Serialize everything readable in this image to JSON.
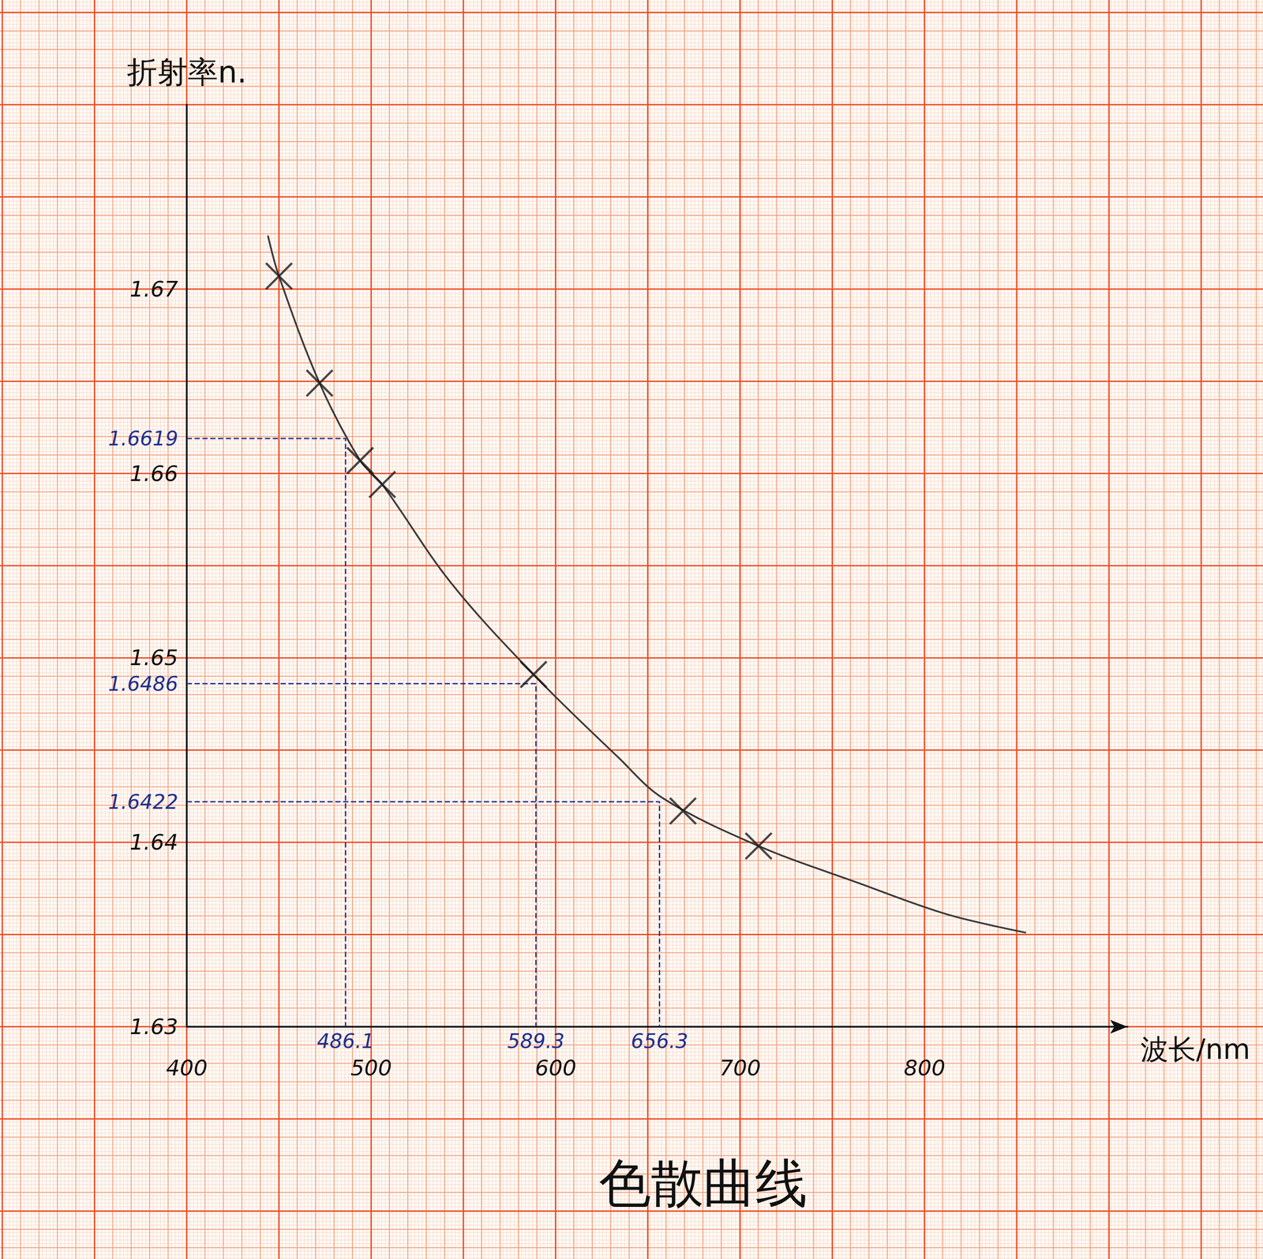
{
  "chart_data": {
    "type": "line",
    "title": "色散曲线",
    "x_label": "波长/nm",
    "y_label": "折射率n.",
    "xlim": [
      400,
      910
    ],
    "ylim": [
      1.63,
      1.68
    ],
    "xticks": [
      400,
      500,
      600,
      700,
      800
    ],
    "yticks": [
      1.63,
      1.64,
      1.65,
      1.66,
      1.67
    ],
    "grid": true,
    "series": [
      {
        "type": "line",
        "color": "#3a3a3a",
        "marker": "none",
        "line_style": "solid",
        "x": [
          444,
          450,
          472,
          494,
          506,
          543,
          588,
          634,
          658,
          710,
          764,
          812,
          855
        ],
        "values": [
          1.6729,
          1.6707,
          1.6649,
          1.6607,
          1.6594,
          1.6541,
          1.6491,
          1.6446,
          1.6424,
          1.6398,
          1.6378,
          1.6361,
          1.6351
        ]
      },
      {
        "type": "scatter",
        "color": "#1a1a1a",
        "marker": "cross",
        "x": [
          450,
          472,
          494,
          506,
          588,
          669,
          710
        ],
        "values": [
          1.6707,
          1.6649,
          1.6607,
          1.6594,
          1.6491,
          1.6417,
          1.6398
        ]
      }
    ],
    "annotations": [
      {
        "x": 486.1,
        "y": 1.6619,
        "color": "#1f2f8f",
        "line_style": "dashed"
      },
      {
        "x": 589.3,
        "y": 1.6486,
        "color": "#1f2f8f",
        "line_style": "dashed"
      },
      {
        "x": 656.3,
        "y": 1.6422,
        "color": "#1f2f8f",
        "line_style": "dashed"
      }
    ]
  }
}
